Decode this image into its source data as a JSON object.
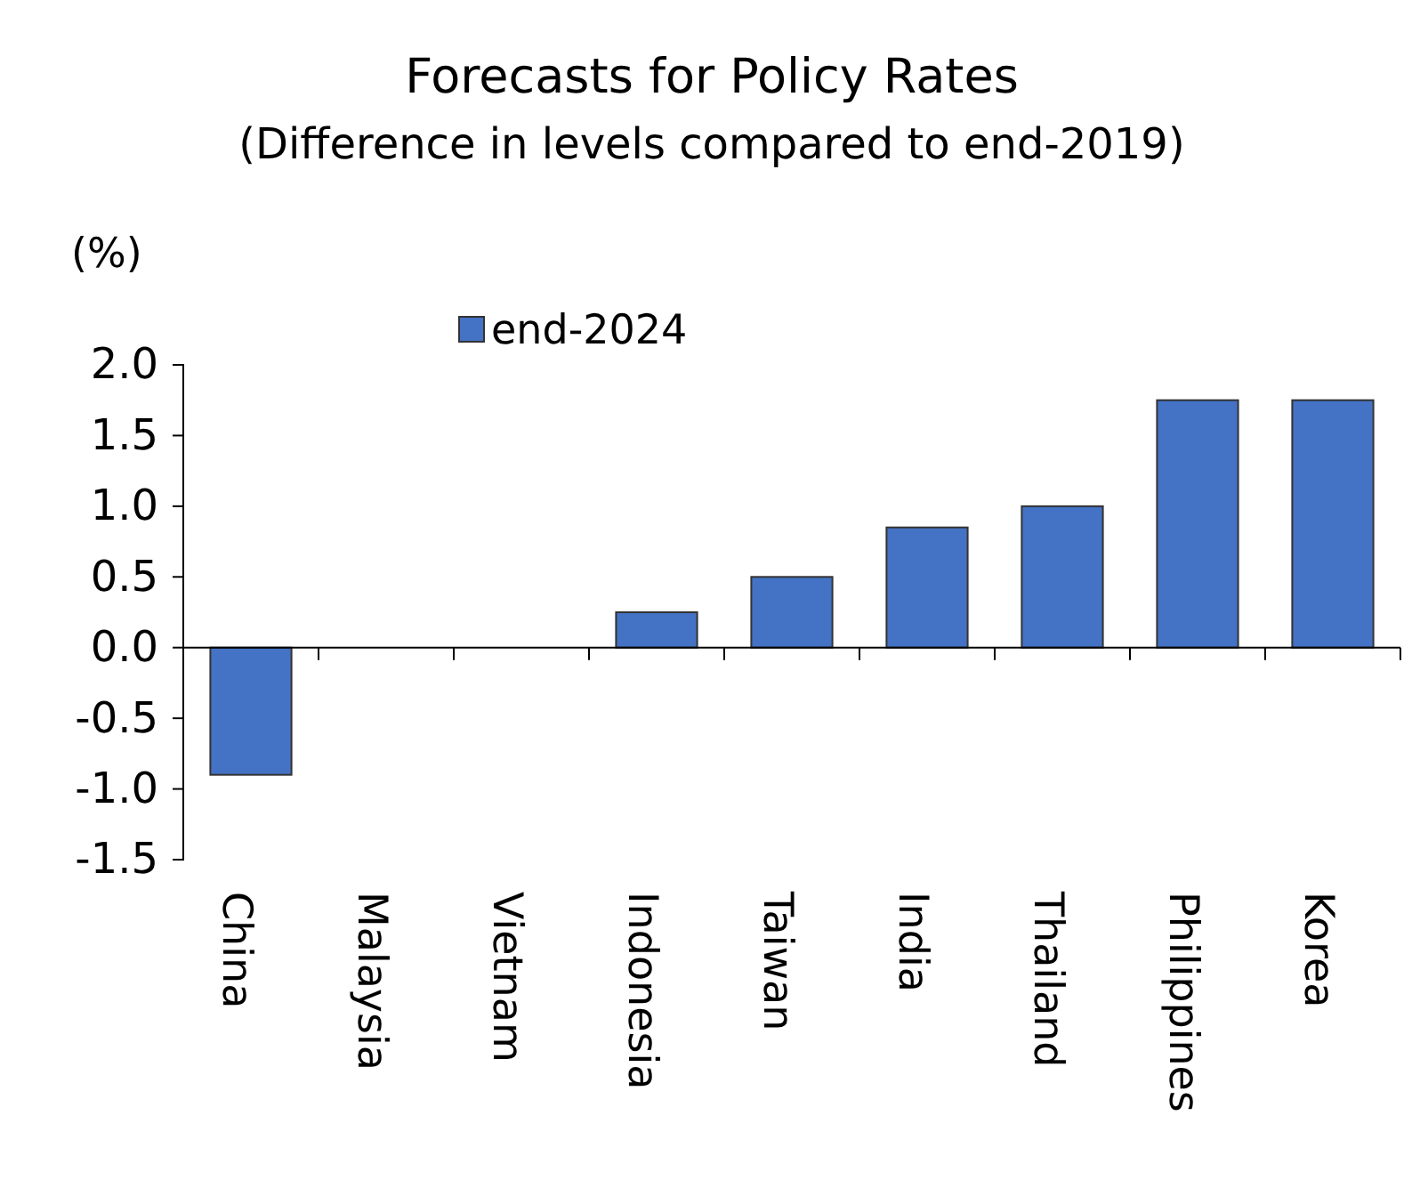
{
  "chart_data": {
    "type": "bar",
    "title": "Forecasts for Policy Rates",
    "subtitle": "(Difference in levels compared to end-2019)",
    "ylabel": "(%)",
    "categories": [
      "China",
      "Malaysia",
      "Vietnam",
      "Indonesia",
      "Taiwan",
      "India",
      "Thailand",
      "Philippines",
      "Korea"
    ],
    "series": [
      {
        "name": "end-2024",
        "color": "#4472c4",
        "values": [
          -0.9,
          0,
          0,
          0.25,
          0.5,
          0.85,
          1.0,
          1.75,
          1.75
        ]
      }
    ],
    "ylim": [
      -1.5,
      2.0
    ],
    "yticks": [
      {
        "value": -1.5,
        "label": "-1.5"
      },
      {
        "value": -1,
        "label": "-1.0"
      },
      {
        "value": -0.5,
        "label": "-0.5"
      },
      {
        "value": 0,
        "label": "0.0"
      },
      {
        "value": 0.5,
        "label": "0.5"
      },
      {
        "value": 1,
        "label": "1.0"
      },
      {
        "value": 1.5,
        "label": "1.5"
      },
      {
        "value": 2,
        "label": "2.0"
      }
    ],
    "legend": "top"
  }
}
